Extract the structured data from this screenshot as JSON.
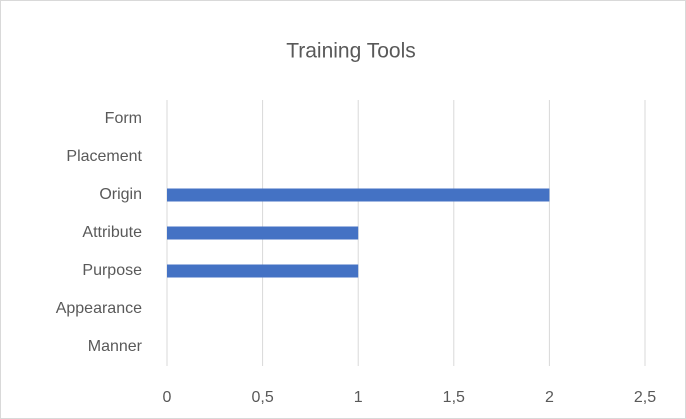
{
  "chart_data": {
    "type": "bar",
    "orientation": "horizontal",
    "title": "Training Tools",
    "categories": [
      "Form",
      "Placement",
      "Origin",
      "Attribute",
      "Purpose",
      "Appearance",
      "Manner"
    ],
    "values": [
      0,
      0,
      2,
      1,
      1,
      0,
      0
    ],
    "color": "#4472c4",
    "xlim": [
      0,
      2.5
    ],
    "xticks": [
      0,
      {
        "value": 0.5,
        "label": "0,5"
      },
      1,
      {
        "value": 1.5,
        "label": "1,5"
      },
      2,
      {
        "value": 2.5,
        "label": "2,5"
      }
    ],
    "grid": true
  }
}
